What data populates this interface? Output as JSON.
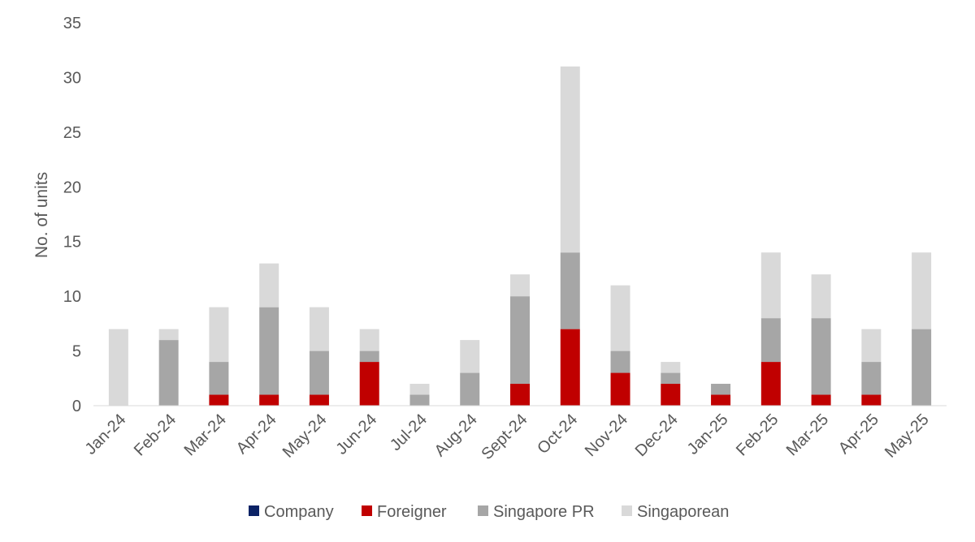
{
  "chart_data": {
    "type": "bar",
    "stacked": true,
    "categories": [
      "Jan-24",
      "Feb-24",
      "Mar-24",
      "Apr-24",
      "May-24",
      "Jun-24",
      "Jul-24",
      "Aug-24",
      "Sept-24",
      "Oct-24",
      "Nov-24",
      "Dec-24",
      "Jan-25",
      "Feb-25",
      "Mar-25",
      "Apr-25",
      "May-25"
    ],
    "series": [
      {
        "name": "Company",
        "color": "#0b2265",
        "values": [
          0,
          0,
          0,
          0,
          0,
          0,
          0,
          0,
          0,
          0,
          0,
          0,
          0,
          0,
          0,
          0,
          0
        ]
      },
      {
        "name": "Foreigner",
        "color": "#c00000",
        "values": [
          0,
          0,
          1,
          1,
          1,
          4,
          0,
          0,
          2,
          7,
          3,
          2,
          1,
          4,
          1,
          1,
          0
        ]
      },
      {
        "name": "Singapore PR",
        "color": "#a6a6a6",
        "values": [
          0,
          6,
          3,
          8,
          4,
          1,
          1,
          3,
          8,
          7,
          2,
          1,
          1,
          4,
          7,
          3,
          7
        ]
      },
      {
        "name": "Singaporean",
        "color": "#d9d9d9",
        "values": [
          7,
          1,
          5,
          4,
          4,
          2,
          1,
          3,
          2,
          17,
          6,
          1,
          0,
          6,
          4,
          3,
          7
        ]
      }
    ],
    "title": "",
    "xlabel": "",
    "ylabel": "No. of units",
    "ylim": [
      0,
      35
    ],
    "yticks": [
      0,
      5,
      10,
      15,
      20,
      25,
      30,
      35
    ],
    "grid": false,
    "legend_position": "bottom"
  }
}
